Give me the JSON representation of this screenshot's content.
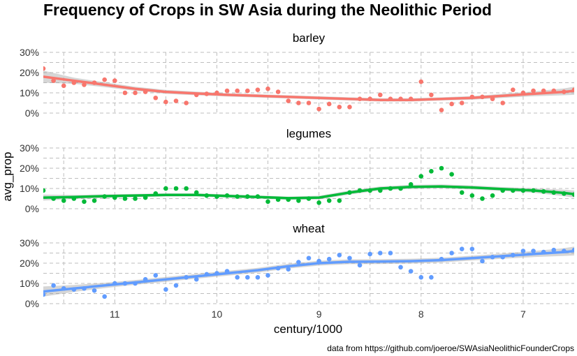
{
  "chart_data": {
    "type": "scatter",
    "title": "Frequency of Crops in SW Asia during the Neolithic Period",
    "xlabel": "century/1000",
    "ylabel": "avg_prop",
    "caption": "data from https://github.com/joeroe/SWAsiaNeolithicFounderCrops",
    "x_reversed": true,
    "xlim": [
      11.7,
      6.5
    ],
    "ylim": [
      0,
      0.3
    ],
    "x_ticks": [
      11,
      10,
      9,
      8,
      7
    ],
    "y_ticks": [
      0,
      0.1,
      0.2,
      0.3
    ],
    "y_tick_labels": [
      "0%",
      "10%",
      "20%",
      "30%"
    ],
    "grid": true,
    "smoother": "loess with confidence band",
    "panels": [
      {
        "name": "barley",
        "color": "#F8766D",
        "points": [
          [
            11.7,
            0.22
          ],
          [
            11.6,
            0.16
          ],
          [
            11.5,
            0.135
          ],
          [
            11.4,
            0.15
          ],
          [
            11.3,
            0.14
          ],
          [
            11.2,
            0.15
          ],
          [
            11.1,
            0.165
          ],
          [
            11.0,
            0.16
          ],
          [
            10.9,
            0.1
          ],
          [
            10.8,
            0.1
          ],
          [
            10.7,
            0.105
          ],
          [
            10.6,
            0.075
          ],
          [
            10.5,
            0.055
          ],
          [
            10.4,
            0.06
          ],
          [
            10.3,
            0.05
          ],
          [
            10.2,
            0.09
          ],
          [
            10.1,
            0.095
          ],
          [
            10.0,
            0.1
          ],
          [
            9.9,
            0.11
          ],
          [
            9.8,
            0.11
          ],
          [
            9.7,
            0.11
          ],
          [
            9.6,
            0.115
          ],
          [
            9.5,
            0.12
          ],
          [
            9.4,
            0.105
          ],
          [
            9.3,
            0.06
          ],
          [
            9.2,
            0.05
          ],
          [
            9.1,
            0.05
          ],
          [
            9.0,
            0.02
          ],
          [
            8.9,
            0.045
          ],
          [
            8.8,
            0.03
          ],
          [
            8.7,
            0.03
          ],
          [
            8.6,
            0.07
          ],
          [
            8.5,
            0.07
          ],
          [
            8.4,
            0.09
          ],
          [
            8.3,
            0.07
          ],
          [
            8.2,
            0.07
          ],
          [
            8.1,
            0.07
          ],
          [
            8.0,
            0.155
          ],
          [
            7.9,
            0.09
          ],
          [
            7.8,
            0.015
          ],
          [
            7.7,
            0.045
          ],
          [
            7.6,
            0.05
          ],
          [
            7.5,
            0.08
          ],
          [
            7.4,
            0.08
          ],
          [
            7.3,
            0.07
          ],
          [
            7.2,
            0.05
          ],
          [
            7.1,
            0.115
          ],
          [
            7.0,
            0.1
          ],
          [
            6.9,
            0.11
          ],
          [
            6.8,
            0.11
          ],
          [
            6.7,
            0.11
          ],
          [
            6.6,
            0.105
          ],
          [
            6.5,
            0.115
          ]
        ],
        "smooth": [
          [
            11.7,
            0.18
          ],
          [
            11.4,
            0.16
          ],
          [
            11.1,
            0.14
          ],
          [
            10.8,
            0.12
          ],
          [
            10.5,
            0.105
          ],
          [
            10.2,
            0.097
          ],
          [
            9.9,
            0.09
          ],
          [
            9.6,
            0.085
          ],
          [
            9.3,
            0.08
          ],
          [
            9.0,
            0.075
          ],
          [
            8.7,
            0.07
          ],
          [
            8.4,
            0.065
          ],
          [
            8.1,
            0.065
          ],
          [
            7.8,
            0.07
          ],
          [
            7.5,
            0.075
          ],
          [
            7.2,
            0.085
          ],
          [
            6.9,
            0.095
          ],
          [
            6.6,
            0.105
          ],
          [
            6.5,
            0.11
          ]
        ],
        "band": [
          [
            11.7,
            0.15,
            0.21
          ],
          [
            11.4,
            0.145,
            0.175
          ],
          [
            11.1,
            0.128,
            0.152
          ],
          [
            10.8,
            0.11,
            0.13
          ],
          [
            10.5,
            0.095,
            0.115
          ],
          [
            10.2,
            0.088,
            0.106
          ],
          [
            9.9,
            0.082,
            0.098
          ],
          [
            9.6,
            0.077,
            0.093
          ],
          [
            9.3,
            0.072,
            0.088
          ],
          [
            9.0,
            0.067,
            0.083
          ],
          [
            8.7,
            0.062,
            0.078
          ],
          [
            8.4,
            0.057,
            0.073
          ],
          [
            8.1,
            0.057,
            0.073
          ],
          [
            7.8,
            0.062,
            0.078
          ],
          [
            7.5,
            0.066,
            0.084
          ],
          [
            7.2,
            0.075,
            0.095
          ],
          [
            6.9,
            0.083,
            0.107
          ],
          [
            6.6,
            0.088,
            0.122
          ],
          [
            6.5,
            0.09,
            0.13
          ]
        ]
      },
      {
        "name": "legumes",
        "color": "#00BA38",
        "points": [
          [
            11.7,
            0.09
          ],
          [
            11.6,
            0.05
          ],
          [
            11.5,
            0.04
          ],
          [
            11.4,
            0.05
          ],
          [
            11.3,
            0.035
          ],
          [
            11.2,
            0.04
          ],
          [
            11.1,
            0.06
          ],
          [
            11.0,
            0.055
          ],
          [
            10.9,
            0.05
          ],
          [
            10.8,
            0.05
          ],
          [
            10.7,
            0.055
          ],
          [
            10.6,
            0.075
          ],
          [
            10.5,
            0.1
          ],
          [
            10.4,
            0.1
          ],
          [
            10.3,
            0.1
          ],
          [
            10.2,
            0.08
          ],
          [
            10.1,
            0.065
          ],
          [
            10.0,
            0.06
          ],
          [
            9.9,
            0.065
          ],
          [
            9.8,
            0.06
          ],
          [
            9.7,
            0.06
          ],
          [
            9.6,
            0.06
          ],
          [
            9.5,
            0.035
          ],
          [
            9.4,
            0.045
          ],
          [
            9.3,
            0.045
          ],
          [
            9.2,
            0.04
          ],
          [
            9.1,
            0.05
          ],
          [
            9.0,
            0.03
          ],
          [
            8.9,
            0.04
          ],
          [
            8.8,
            0.04
          ],
          [
            8.7,
            0.08
          ],
          [
            8.6,
            0.09
          ],
          [
            8.5,
            0.09
          ],
          [
            8.4,
            0.09
          ],
          [
            8.3,
            0.1
          ],
          [
            8.2,
            0.1
          ],
          [
            8.1,
            0.12
          ],
          [
            8.0,
            0.16
          ],
          [
            7.9,
            0.185
          ],
          [
            7.8,
            0.2
          ],
          [
            7.7,
            0.17
          ],
          [
            7.6,
            0.08
          ],
          [
            7.5,
            0.065
          ],
          [
            7.4,
            0.05
          ],
          [
            7.3,
            0.065
          ],
          [
            7.2,
            0.09
          ],
          [
            7.1,
            0.09
          ],
          [
            7.0,
            0.09
          ],
          [
            6.9,
            0.09
          ],
          [
            6.8,
            0.085
          ],
          [
            6.7,
            0.08
          ],
          [
            6.6,
            0.075
          ],
          [
            6.5,
            0.07
          ]
        ],
        "smooth": [
          [
            11.7,
            0.055
          ],
          [
            11.4,
            0.058
          ],
          [
            11.1,
            0.062
          ],
          [
            10.8,
            0.065
          ],
          [
            10.5,
            0.068
          ],
          [
            10.2,
            0.068
          ],
          [
            9.9,
            0.063
          ],
          [
            9.6,
            0.058
          ],
          [
            9.3,
            0.052
          ],
          [
            9.0,
            0.055
          ],
          [
            8.7,
            0.08
          ],
          [
            8.4,
            0.1
          ],
          [
            8.1,
            0.108
          ],
          [
            7.8,
            0.11
          ],
          [
            7.5,
            0.105
          ],
          [
            7.2,
            0.097
          ],
          [
            6.9,
            0.09
          ],
          [
            6.6,
            0.078
          ],
          [
            6.5,
            0.072
          ]
        ],
        "band": [
          [
            11.7,
            0.04,
            0.07
          ],
          [
            11.4,
            0.048,
            0.068
          ],
          [
            11.1,
            0.053,
            0.071
          ],
          [
            10.8,
            0.057,
            0.073
          ],
          [
            10.5,
            0.06,
            0.076
          ],
          [
            10.2,
            0.06,
            0.076
          ],
          [
            9.9,
            0.055,
            0.071
          ],
          [
            9.6,
            0.05,
            0.066
          ],
          [
            9.3,
            0.044,
            0.06
          ],
          [
            9.0,
            0.046,
            0.064
          ],
          [
            8.7,
            0.07,
            0.09
          ],
          [
            8.4,
            0.09,
            0.11
          ],
          [
            8.1,
            0.098,
            0.118
          ],
          [
            7.8,
            0.1,
            0.12
          ],
          [
            7.5,
            0.095,
            0.115
          ],
          [
            7.2,
            0.087,
            0.107
          ],
          [
            6.9,
            0.079,
            0.101
          ],
          [
            6.6,
            0.062,
            0.094
          ],
          [
            6.5,
            0.055,
            0.09
          ]
        ]
      },
      {
        "name": "wheat",
        "color": "#619CFF",
        "points": [
          [
            11.7,
            0.045
          ],
          [
            11.6,
            0.09
          ],
          [
            11.5,
            0.075
          ],
          [
            11.4,
            0.07
          ],
          [
            11.3,
            0.075
          ],
          [
            11.2,
            0.065
          ],
          [
            11.1,
            0.035
          ],
          [
            11.0,
            0.1
          ],
          [
            10.9,
            0.1
          ],
          [
            10.8,
            0.1
          ],
          [
            10.7,
            0.12
          ],
          [
            10.6,
            0.14
          ],
          [
            10.5,
            0.07
          ],
          [
            10.4,
            0.09
          ],
          [
            10.3,
            0.13
          ],
          [
            10.2,
            0.12
          ],
          [
            10.1,
            0.145
          ],
          [
            10.0,
            0.15
          ],
          [
            9.9,
            0.16
          ],
          [
            9.8,
            0.13
          ],
          [
            9.7,
            0.13
          ],
          [
            9.6,
            0.13
          ],
          [
            9.5,
            0.14
          ],
          [
            9.4,
            0.175
          ],
          [
            9.3,
            0.17
          ],
          [
            9.2,
            0.205
          ],
          [
            9.1,
            0.225
          ],
          [
            9.0,
            0.21
          ],
          [
            8.9,
            0.22
          ],
          [
            8.8,
            0.24
          ],
          [
            8.7,
            0.225
          ],
          [
            8.6,
            0.19
          ],
          [
            8.5,
            0.245
          ],
          [
            8.4,
            0.25
          ],
          [
            8.3,
            0.25
          ],
          [
            8.2,
            0.18
          ],
          [
            8.1,
            0.16
          ],
          [
            8.0,
            0.13
          ],
          [
            7.9,
            0.13
          ],
          [
            7.8,
            0.22
          ],
          [
            7.7,
            0.25
          ],
          [
            7.6,
            0.27
          ],
          [
            7.5,
            0.27
          ],
          [
            7.4,
            0.21
          ],
          [
            7.3,
            0.23
          ],
          [
            7.2,
            0.23
          ],
          [
            7.1,
            0.24
          ],
          [
            7.0,
            0.26
          ],
          [
            6.9,
            0.26
          ],
          [
            6.8,
            0.255
          ],
          [
            6.7,
            0.265
          ],
          [
            6.6,
            0.26
          ],
          [
            6.5,
            0.265
          ]
        ],
        "smooth": [
          [
            11.7,
            0.06
          ],
          [
            11.4,
            0.075
          ],
          [
            11.1,
            0.09
          ],
          [
            10.8,
            0.105
          ],
          [
            10.5,
            0.12
          ],
          [
            10.2,
            0.135
          ],
          [
            9.9,
            0.15
          ],
          [
            9.6,
            0.165
          ],
          [
            9.3,
            0.185
          ],
          [
            9.0,
            0.2
          ],
          [
            8.7,
            0.207
          ],
          [
            8.4,
            0.208
          ],
          [
            8.1,
            0.21
          ],
          [
            7.8,
            0.215
          ],
          [
            7.5,
            0.225
          ],
          [
            7.2,
            0.235
          ],
          [
            6.9,
            0.245
          ],
          [
            6.6,
            0.255
          ],
          [
            6.5,
            0.26
          ]
        ],
        "band": [
          [
            11.7,
            0.035,
            0.085
          ],
          [
            11.4,
            0.058,
            0.092
          ],
          [
            11.1,
            0.077,
            0.103
          ],
          [
            10.8,
            0.093,
            0.117
          ],
          [
            10.5,
            0.108,
            0.132
          ],
          [
            10.2,
            0.123,
            0.147
          ],
          [
            9.9,
            0.138,
            0.162
          ],
          [
            9.6,
            0.153,
            0.177
          ],
          [
            9.3,
            0.173,
            0.197
          ],
          [
            9.0,
            0.188,
            0.212
          ],
          [
            8.7,
            0.195,
            0.219
          ],
          [
            8.4,
            0.196,
            0.22
          ],
          [
            8.1,
            0.198,
            0.222
          ],
          [
            7.8,
            0.203,
            0.227
          ],
          [
            7.5,
            0.213,
            0.237
          ],
          [
            7.2,
            0.222,
            0.248
          ],
          [
            6.9,
            0.23,
            0.26
          ],
          [
            6.6,
            0.236,
            0.274
          ],
          [
            6.5,
            0.238,
            0.282
          ]
        ]
      }
    ]
  }
}
